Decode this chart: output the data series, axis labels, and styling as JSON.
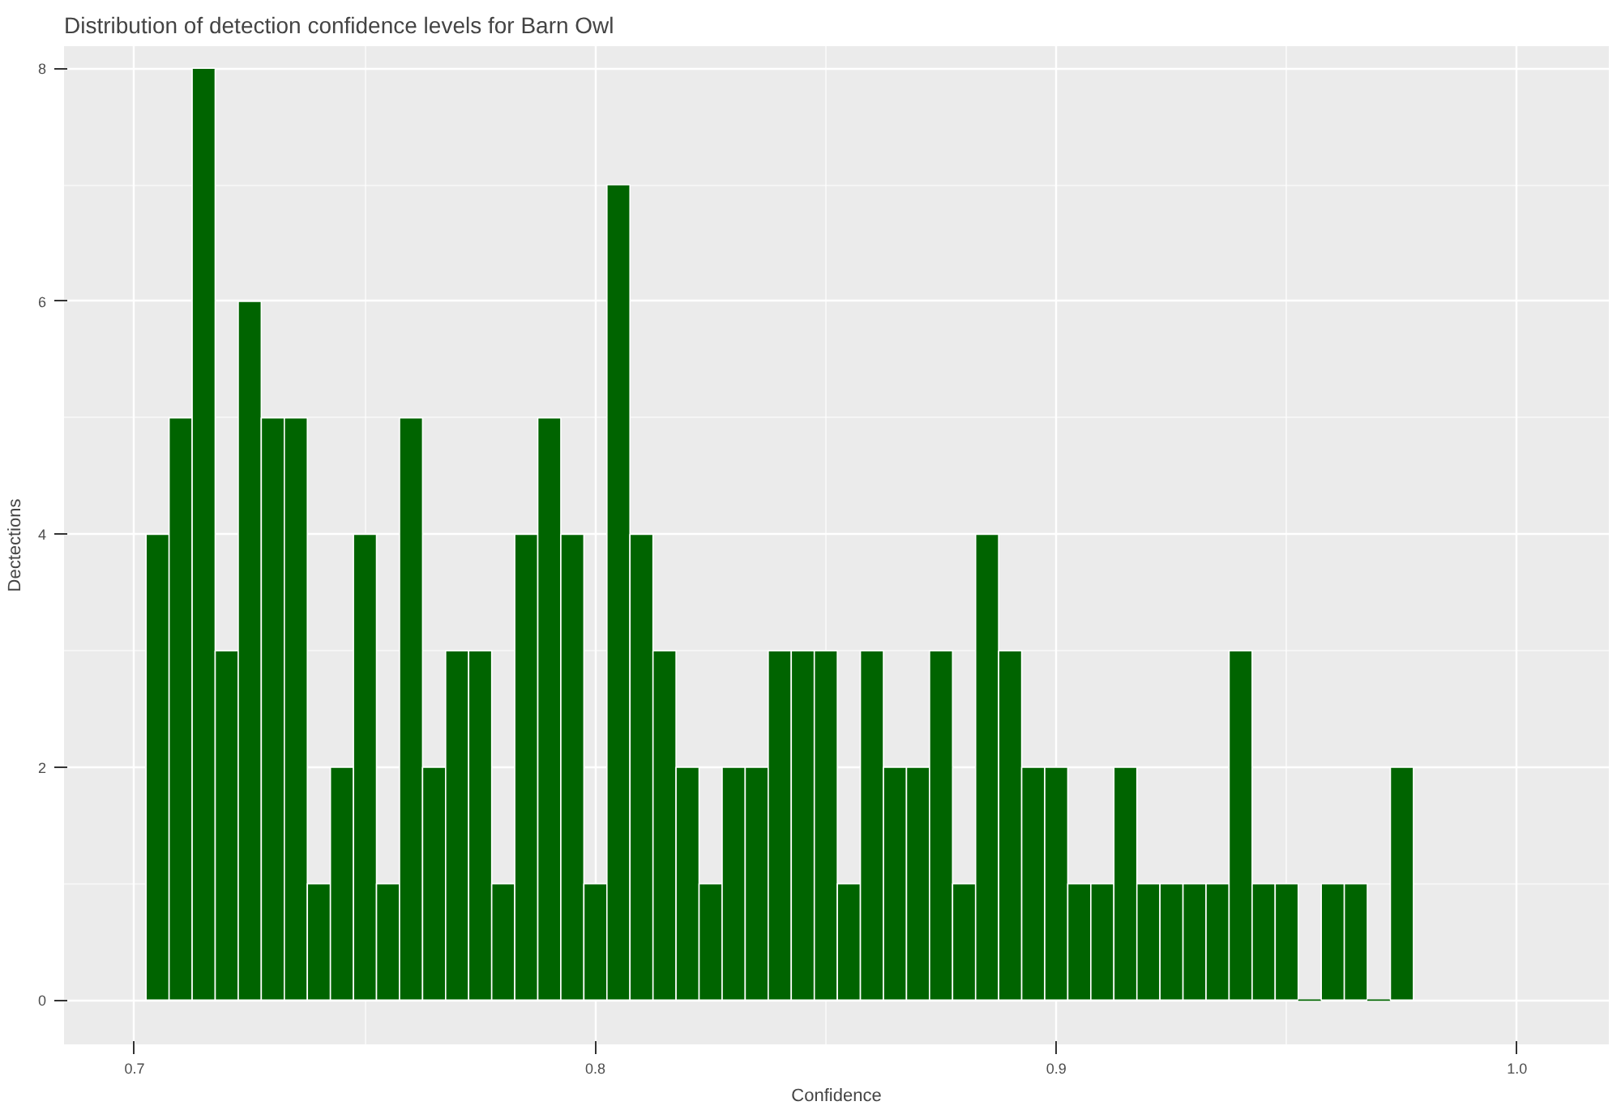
{
  "chart_data": {
    "type": "histogram",
    "title": "Distribution of detection confidence levels for Barn Owl",
    "xlabel": "Confidence",
    "ylabel": "Dectections",
    "bins": [
      0.7025,
      0.7075,
      0.7125,
      0.7175,
      0.7225,
      0.7275,
      0.7325,
      0.7375,
      0.7425,
      0.7475,
      0.7525,
      0.7575,
      0.7625,
      0.7675,
      0.7725,
      0.7775,
      0.7825,
      0.7875,
      0.7925,
      0.7975,
      0.8025,
      0.8075,
      0.8125,
      0.8175,
      0.8225,
      0.8275,
      0.8325,
      0.8375,
      0.8425,
      0.8475,
      0.8525,
      0.8575,
      0.8625,
      0.8675,
      0.8725,
      0.8775,
      0.8825,
      0.8875,
      0.8925,
      0.8975,
      0.9025,
      0.9075,
      0.9125,
      0.9175,
      0.9225,
      0.9275,
      0.9325,
      0.9375,
      0.9425,
      0.9475,
      0.9525,
      0.9575,
      0.9625,
      0.9675,
      0.9725,
      0.9775
    ],
    "values": [
      4,
      5,
      8,
      3,
      6,
      5,
      5,
      1,
      2,
      4,
      1,
      5,
      2,
      3,
      3,
      1,
      4,
      5,
      4,
      1,
      7,
      4,
      3,
      2,
      1,
      2,
      2,
      3,
      3,
      3,
      1,
      3,
      2,
      2,
      3,
      1,
      4,
      3,
      2,
      2,
      1,
      1,
      2,
      1,
      1,
      1,
      1,
      3,
      1,
      1,
      0,
      1,
      1,
      0,
      2
    ],
    "color": "#006400",
    "xlim": [
      0.6847,
      1.0199
    ],
    "ylim": [
      -0.38,
      8.19
    ],
    "xticks": [
      0.7,
      0.8,
      0.9,
      {
        "value": 1.0,
        "label": "1.0"
      }
    ],
    "yticks": [
      0,
      2,
      4,
      6,
      8
    ],
    "grid": true
  }
}
